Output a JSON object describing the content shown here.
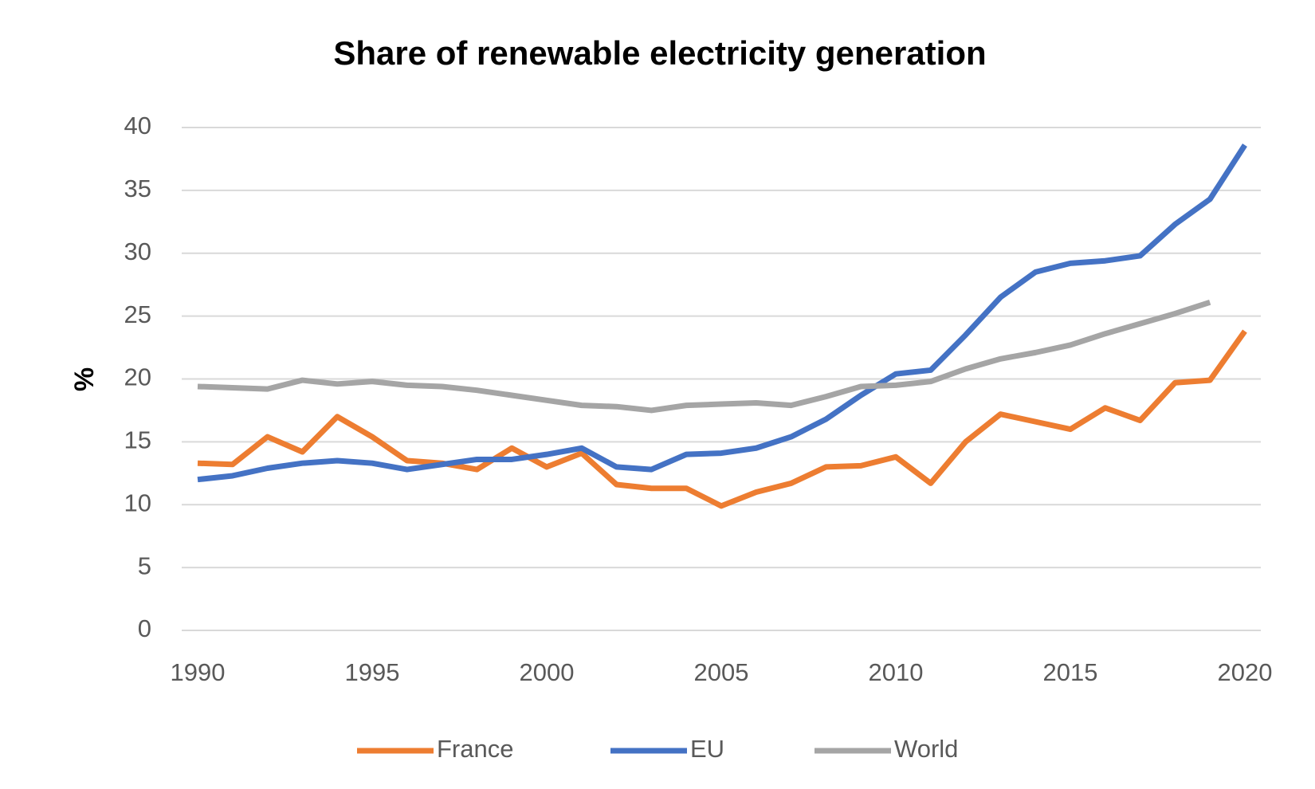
{
  "chart_data": {
    "type": "line",
    "title": "Share of renewable electricity generation",
    "y_label": "%",
    "x": [
      1990,
      1991,
      1992,
      1993,
      1994,
      1995,
      1996,
      1997,
      1998,
      1999,
      2000,
      2001,
      2002,
      2003,
      2004,
      2005,
      2006,
      2007,
      2008,
      2009,
      2010,
      2011,
      2012,
      2013,
      2014,
      2015,
      2016,
      2017,
      2018,
      2019,
      2020
    ],
    "series": [
      {
        "name": "France",
        "color": "#ed7d31",
        "values": [
          13.3,
          13.2,
          15.4,
          14.2,
          17.0,
          15.4,
          13.5,
          13.3,
          12.8,
          14.5,
          13.0,
          14.1,
          11.6,
          11.3,
          11.3,
          9.9,
          11.0,
          11.7,
          13.0,
          13.1,
          13.8,
          11.7,
          15.0,
          17.2,
          16.6,
          16.0,
          17.7,
          16.7,
          19.7,
          19.9,
          23.8
        ]
      },
      {
        "name": "EU",
        "color": "#4472c4",
        "values": [
          12.0,
          12.3,
          12.9,
          13.3,
          13.5,
          13.3,
          12.8,
          13.2,
          13.6,
          13.6,
          14.0,
          14.5,
          13.0,
          12.8,
          14.0,
          14.1,
          14.5,
          15.4,
          16.8,
          18.7,
          20.4,
          20.7,
          23.5,
          26.5,
          28.5,
          29.2,
          29.4,
          29.8,
          32.3,
          34.3,
          38.6
        ]
      },
      {
        "name": "World",
        "color": "#a5a5a5",
        "values": [
          19.4,
          19.3,
          19.2,
          19.9,
          19.6,
          19.8,
          19.5,
          19.4,
          19.1,
          18.7,
          18.3,
          17.9,
          17.8,
          17.5,
          17.9,
          18.0,
          18.1,
          17.9,
          18.6,
          19.4,
          19.5,
          19.8,
          20.8,
          21.6,
          22.1,
          22.7,
          23.6,
          24.4,
          25.2,
          26.1,
          null
        ]
      }
    ],
    "xlim": [
      1990,
      2020
    ],
    "xticks": [
      1990,
      1995,
      2000,
      2005,
      2010,
      2015,
      2020
    ],
    "ylim": [
      0,
      40
    ],
    "yticks": [
      0,
      5,
      10,
      15,
      20,
      25,
      30,
      35,
      40
    ],
    "grid": true,
    "legend": "bottom"
  }
}
